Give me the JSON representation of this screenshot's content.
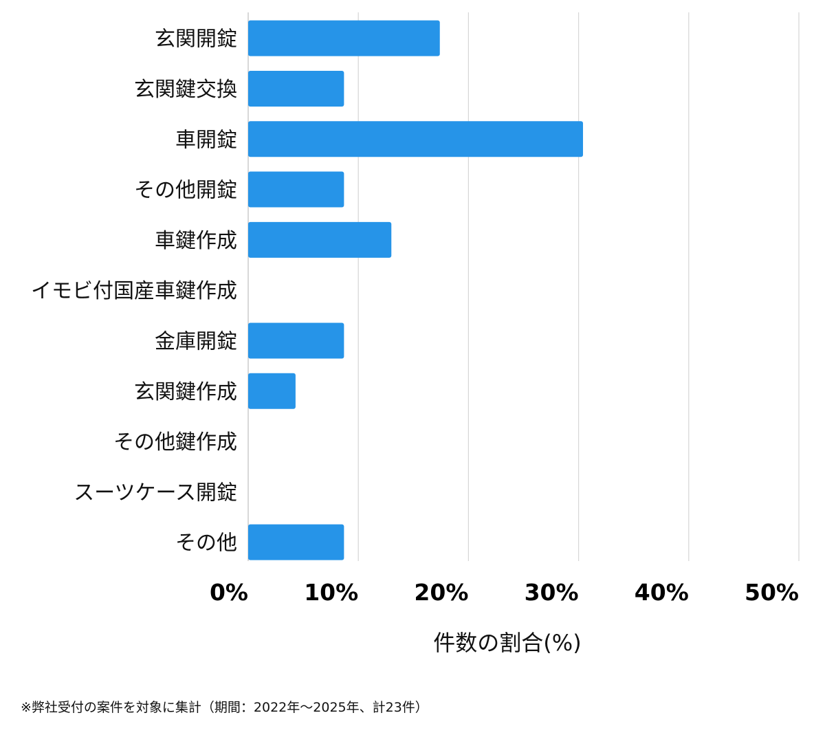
{
  "chart_data": {
    "type": "bar",
    "orientation": "horizontal",
    "categories": [
      "玄関開錠",
      "玄関鍵交換",
      "車開錠",
      "その他開錠",
      "車鍵作成",
      "イモビ付国産車鍵作成",
      "金庫開錠",
      "玄関鍵作成",
      "その他鍵作成",
      "スーツケース開錠",
      "その他"
    ],
    "values": [
      17.4,
      8.7,
      30.4,
      8.7,
      13.0,
      0,
      8.7,
      4.3,
      0,
      0,
      8.7
    ],
    "xlabel": "件数の割合(%)",
    "xlim": [
      0,
      50
    ],
    "xticks": [
      "0%",
      "10%",
      "20%",
      "30%",
      "40%",
      "50%"
    ],
    "grid": "vertical",
    "bar_color": "#2694e8"
  },
  "footnote": "※弊社受付の案件を対象に集計（期間：2022年〜2025年、計23件）"
}
